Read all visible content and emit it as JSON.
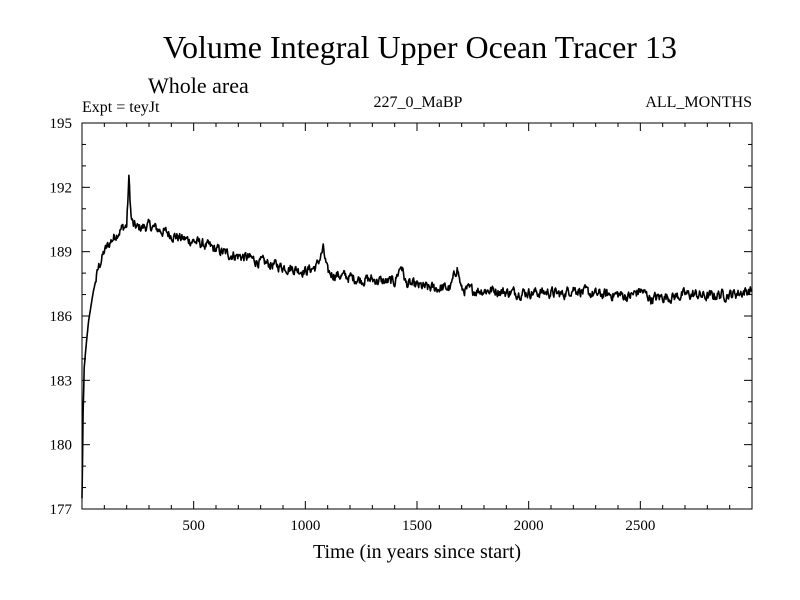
{
  "chart_data": {
    "type": "line",
    "title": "Volume Integral Upper Ocean Tracer 13",
    "subtitle": "Whole area",
    "annotations": {
      "left": "Expt = teyJt",
      "center": "227_0_MaBP",
      "right": "ALL_MONTHS"
    },
    "xlabel": "Time (in years since start)",
    "ylabel": "",
    "xlim": [
      0,
      3000
    ],
    "ylim": [
      177,
      195
    ],
    "x_ticks": [
      500,
      1000,
      1500,
      2000,
      2500
    ],
    "y_ticks": [
      177,
      180,
      183,
      186,
      189,
      192,
      195
    ],
    "x_tick_labels": [
      "500",
      "1000",
      "1500",
      "2000",
      "2500"
    ],
    "y_tick_labels": [
      "177",
      "180",
      "183",
      "186",
      "189",
      "192",
      "195"
    ],
    "grid": false,
    "series": [
      {
        "name": "Tracer 13",
        "color": "#000000",
        "x": [
          0,
          5,
          10,
          20,
          30,
          50,
          75,
          100,
          130,
          160,
          180,
          200,
          210,
          220,
          230,
          250,
          300,
          350,
          400,
          450,
          500,
          550,
          600,
          650,
          700,
          750,
          800,
          850,
          900,
          950,
          1000,
          1050,
          1080,
          1100,
          1150,
          1200,
          1250,
          1300,
          1350,
          1400,
          1430,
          1450,
          1500,
          1550,
          1600,
          1650,
          1680,
          1700,
          1750,
          1800,
          1850,
          1900,
          1950,
          2000,
          2050,
          2100,
          2150,
          2200,
          2250,
          2300,
          2350,
          2400,
          2450,
          2500,
          2550,
          2600,
          2650,
          2700,
          2750,
          2800,
          2850,
          2900,
          2950,
          3000
        ],
        "values": [
          177.5,
          181.5,
          183.6,
          184.8,
          185.8,
          187.1,
          188.3,
          189.0,
          189.5,
          189.9,
          190.1,
          190.2,
          192.4,
          190.6,
          190.2,
          190.1,
          190.2,
          190.0,
          189.8,
          189.6,
          189.5,
          189.3,
          189.1,
          188.9,
          188.8,
          188.7,
          188.5,
          188.4,
          188.3,
          188.2,
          188.1,
          188.3,
          189.1,
          188.0,
          187.9,
          187.8,
          187.7,
          187.7,
          187.6,
          187.6,
          188.4,
          187.5,
          187.4,
          187.3,
          187.3,
          187.3,
          188.3,
          187.2,
          187.2,
          187.2,
          187.2,
          187.1,
          187.1,
          187.1,
          187.1,
          187.1,
          187.0,
          187.3,
          187.1,
          187.0,
          187.0,
          187.0,
          186.9,
          187.2,
          186.8,
          186.9,
          186.9,
          187.0,
          187.0,
          186.9,
          187.0,
          187.0,
          187.1,
          187.2
        ]
      }
    ]
  }
}
